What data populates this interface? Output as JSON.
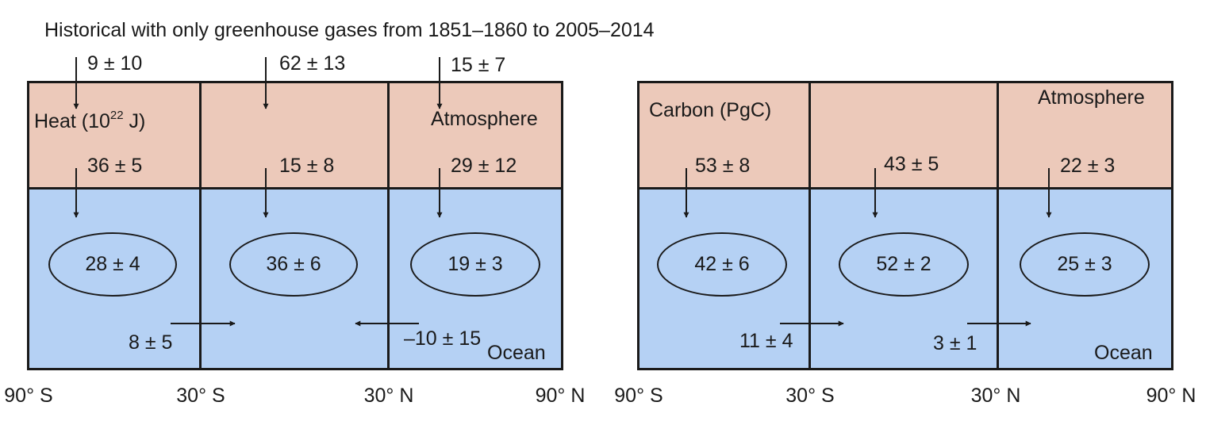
{
  "title": "Historical with only greenhouse gases from 1851–1860 to 2005–2014",
  "colors": {
    "atmosphere": "#ecc9ba",
    "ocean": "#b5d1f4",
    "line": "#1a1a1a"
  },
  "heat": {
    "label_prefix": "Heat (10",
    "label_exp": "22",
    "label_suffix": " J)",
    "atmosphere_label": "Atmosphere",
    "ocean_label": "Ocean",
    "top_flux": [
      "9 ± 10",
      "62 ± 13",
      "15 ± 7"
    ],
    "air_sea_flux": [
      "36 ± 5",
      "15 ± 8",
      "29 ± 12"
    ],
    "storage": [
      "28 ± 4",
      "36 ± 6",
      "19 ± 3"
    ],
    "transport": [
      "8 ± 5",
      "–10 ± 15"
    ],
    "ticks": [
      "90° S",
      "30° S",
      "30° N",
      "90° N"
    ]
  },
  "carbon": {
    "label": "Carbon (PgC)",
    "atmosphere_label": "Atmosphere",
    "ocean_label": "Ocean",
    "air_sea_flux": [
      "53 ± 8",
      "43 ± 5",
      "22 ± 3"
    ],
    "storage": [
      "42 ± 6",
      "52 ± 2",
      "25 ± 3"
    ],
    "transport": [
      "11 ± 4",
      "3 ± 1"
    ],
    "ticks": [
      "90° S",
      "30° S",
      "30° N",
      "90° N"
    ]
  }
}
